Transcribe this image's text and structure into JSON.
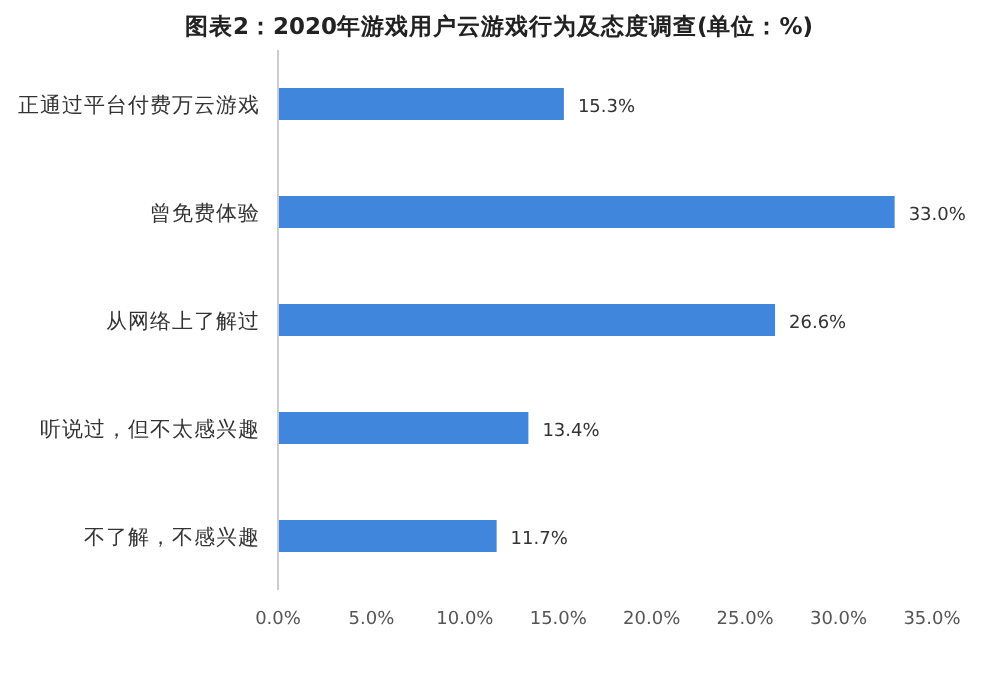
{
  "chart_data": {
    "type": "bar",
    "orientation": "horizontal",
    "title": "图表2：2020年游戏用户云游戏行为及态度调查(单位：%)",
    "categories": [
      "正通过平台付费万云游戏",
      "曾免费体验",
      "从网络上了解过",
      "听说过，但不太感兴趣",
      "不了解，不感兴趣"
    ],
    "values": [
      15.3,
      33.0,
      26.6,
      13.4,
      11.7
    ],
    "value_labels": [
      "15.3%",
      "33.0%",
      "26.6%",
      "13.4%",
      "11.7%"
    ],
    "color": "#3f86dc",
    "xlim": [
      0,
      35
    ],
    "xticks": [
      {
        "value": 0,
        "label": "0.0%"
      },
      {
        "value": 5,
        "label": "5.0%"
      },
      {
        "value": 10,
        "label": "10.0%"
      },
      {
        "value": 15,
        "label": "15.0%"
      },
      {
        "value": 20,
        "label": "20.0%"
      },
      {
        "value": 25,
        "label": "25.0%"
      },
      {
        "value": 30,
        "label": "30.0%"
      },
      {
        "value": 35,
        "label": "35.0%"
      }
    ],
    "grid": false
  }
}
